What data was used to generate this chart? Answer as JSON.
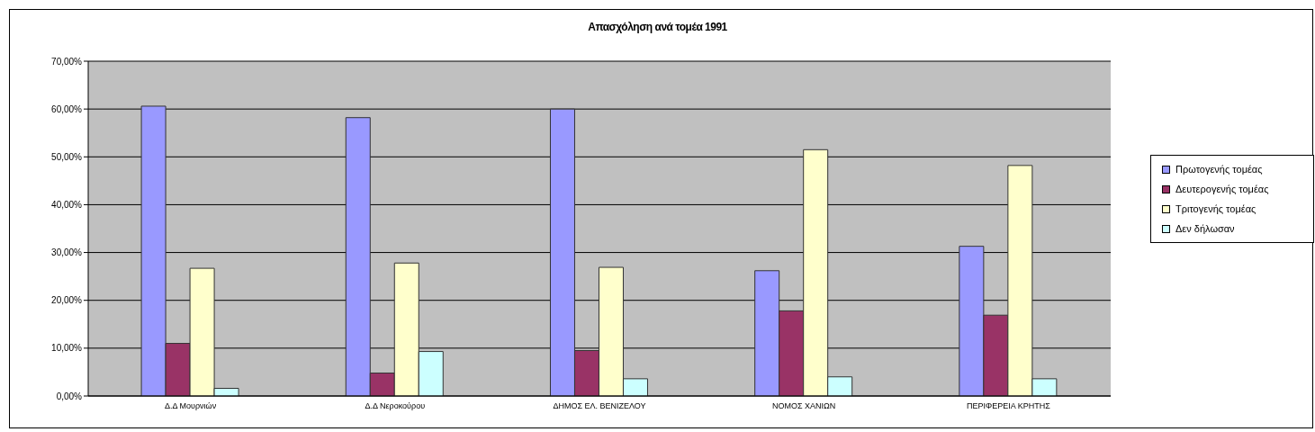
{
  "chart_data": {
    "type": "bar",
    "title": "Απασχόληση ανά τομέα 1991",
    "categories": [
      "Δ.Δ Μουρνιών",
      "Δ.Δ Νεροκούρου",
      "ΔΗΜΟΣ ΕΛ. ΒΕΝΙΖΕΛΟΥ",
      "ΝΟΜΟΣ ΧΑΝΙΩΝ",
      "ΠΕΡΙΦΕΡΕΙΑ ΚΡΗΤΗΣ"
    ],
    "series": [
      {
        "name": "Πρωτογενής τομέας",
        "color": "#9999ff",
        "values": [
          60.6,
          58.2,
          60.0,
          26.2,
          31.3
        ]
      },
      {
        "name": "Δευτερογενής τομέας",
        "color": "#993366",
        "values": [
          11.0,
          4.8,
          9.5,
          17.8,
          16.9
        ]
      },
      {
        "name": "Τριτογενής τομέας",
        "color": "#ffffcc",
        "values": [
          26.7,
          27.8,
          26.9,
          51.5,
          48.2
        ]
      },
      {
        "name": "Δεν δήλωσαν",
        "color": "#ccffff",
        "values": [
          1.6,
          9.3,
          3.6,
          4.0,
          3.6
        ]
      }
    ],
    "ylim": [
      0,
      70
    ],
    "yticks": [
      {
        "value": 0,
        "label": "0,00%"
      },
      {
        "value": 10,
        "label": "10,00%"
      },
      {
        "value": 20,
        "label": "20,00%"
      },
      {
        "value": 30,
        "label": "30,00%"
      },
      {
        "value": 40,
        "label": "40,00%"
      },
      {
        "value": 50,
        "label": "50,00%"
      },
      {
        "value": 60,
        "label": "60,00%"
      },
      {
        "value": 70,
        "label": "70,00%"
      }
    ],
    "grid": "y",
    "legend": "right"
  }
}
